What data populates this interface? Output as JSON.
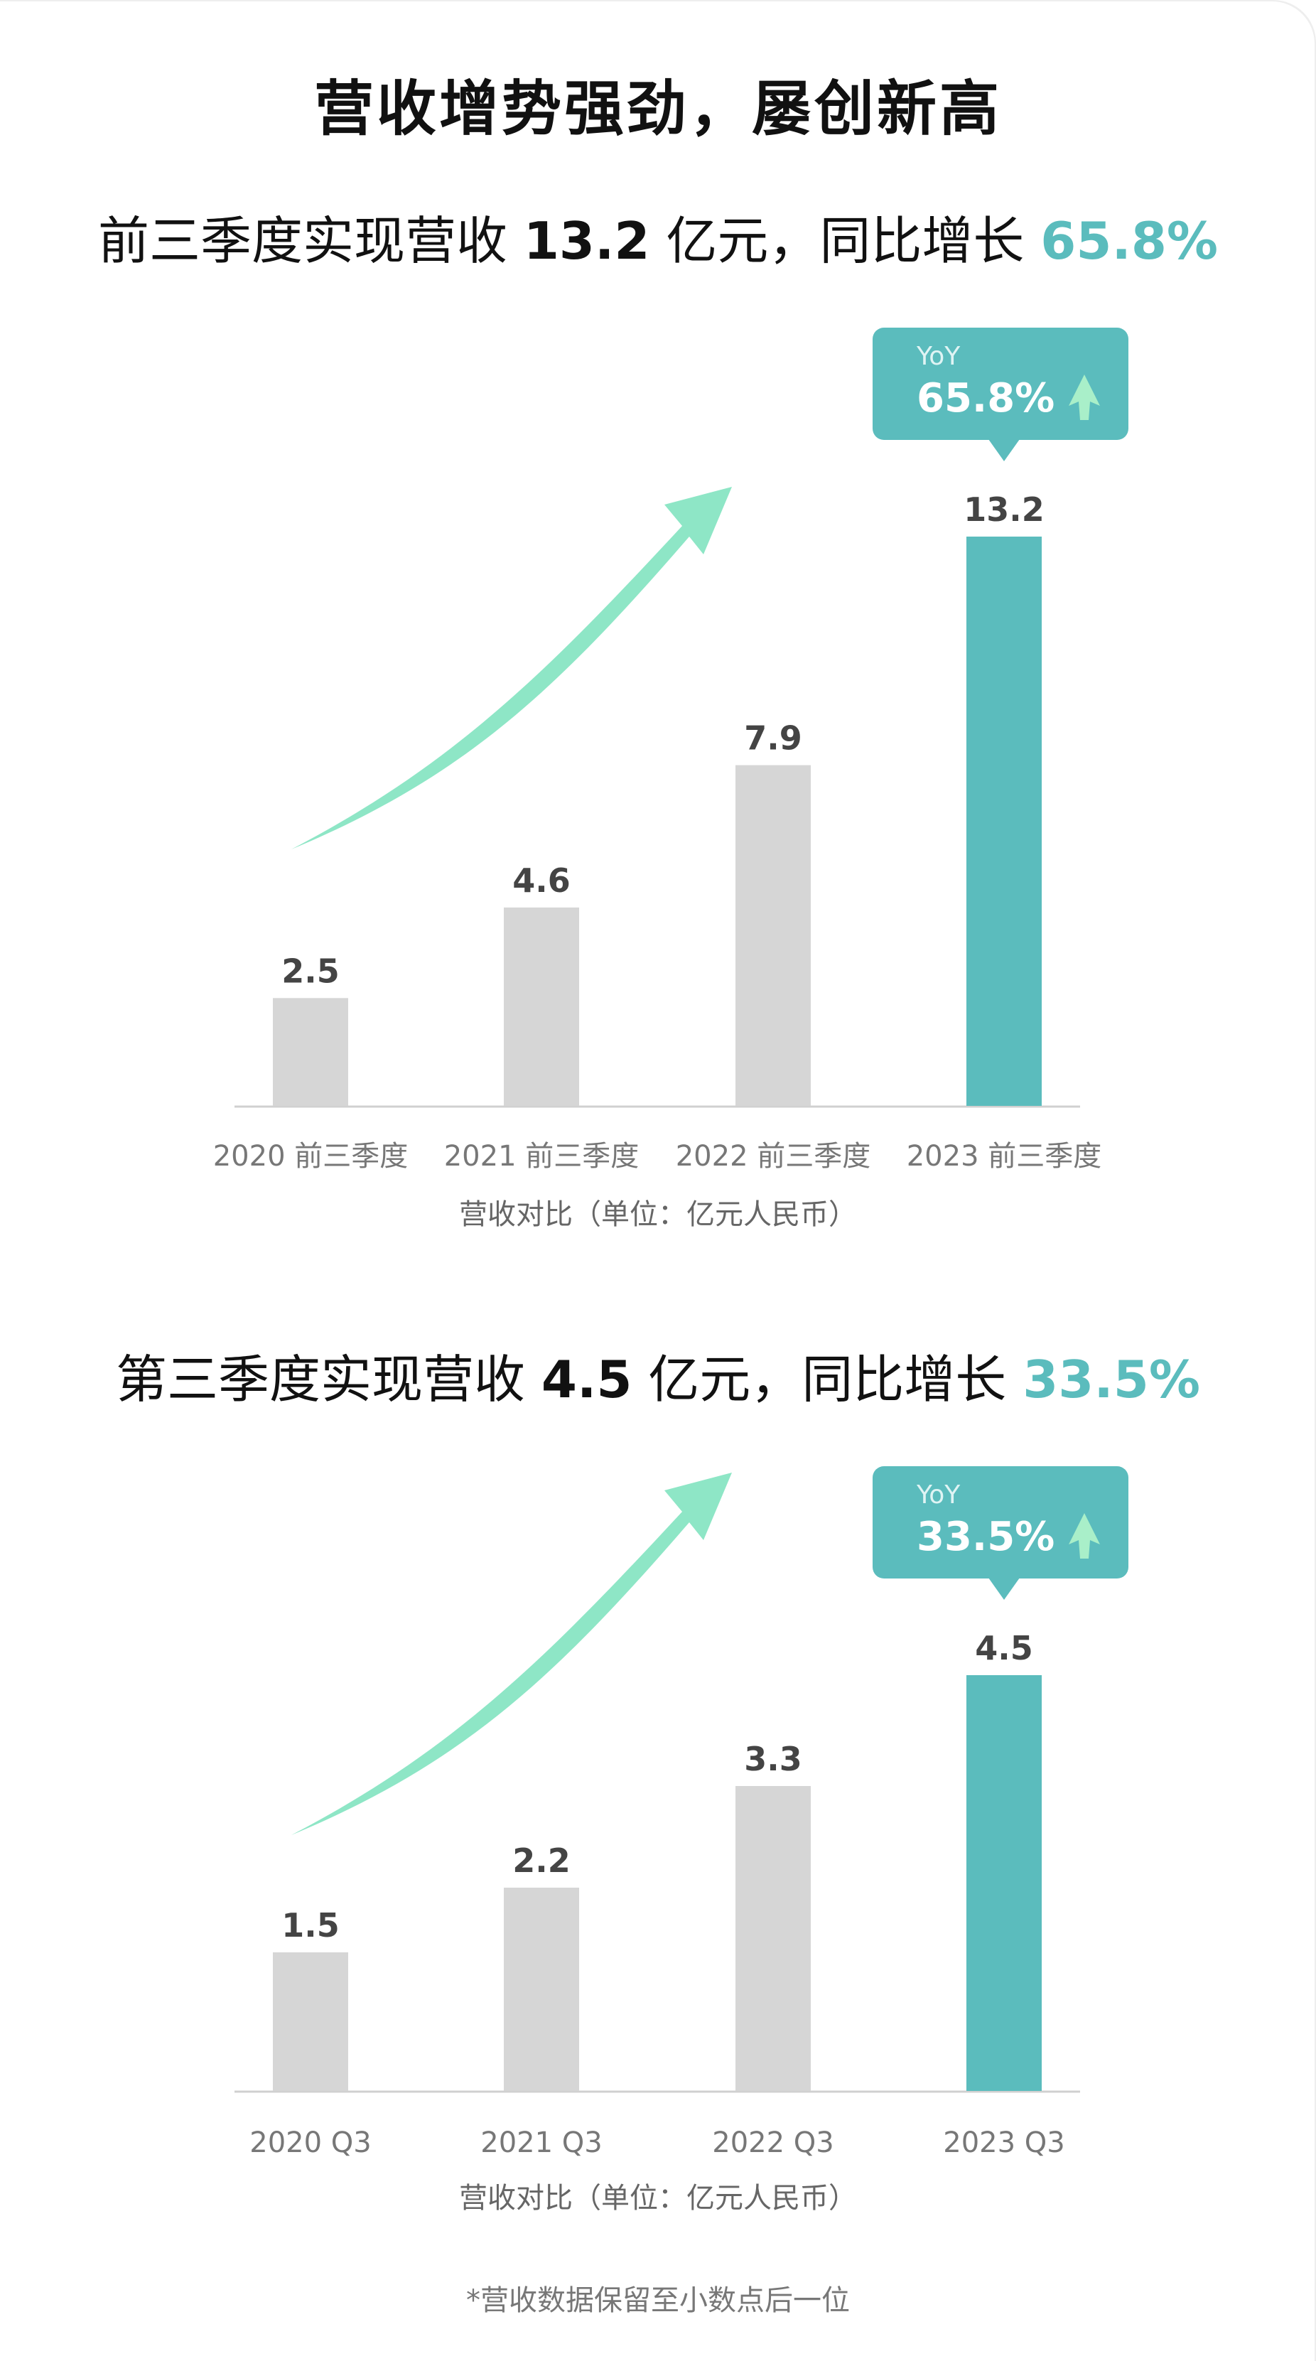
{
  "page_title": "营收增势强劲，屡创新高",
  "footnote": "*营收数据保留至小数点后一位",
  "colors": {
    "bar_default": "#d6d6d6",
    "bar_highlight": "#5bbcbd",
    "accent": "#5bbcbd",
    "arrow": "#8ee6c6",
    "yoy_arrow": "#a9efc9"
  },
  "sections": [
    {
      "headline": {
        "prefix": "前三季度实现营收 ",
        "value": "13.2",
        "middle": " 亿元，同比增长 ",
        "pct": "65.8%"
      },
      "yoy_label": "YoY",
      "yoy_value": "65.8%",
      "caption": "营收对比（单位：亿元人民币）"
    },
    {
      "headline": {
        "prefix": "第三季度实现营收 ",
        "value": "4.5",
        "middle": " 亿元，同比增长 ",
        "pct": "33.5%"
      },
      "yoy_label": "YoY",
      "yoy_value": "33.5%",
      "caption": "营收对比（单位：亿元人民币）"
    }
  ],
  "chart_data": [
    {
      "type": "bar",
      "categories": [
        "2020 前三季度",
        "2021 前三季度",
        "2022 前三季度",
        "2023 前三季度"
      ],
      "values": [
        2.5,
        4.6,
        7.9,
        13.2
      ],
      "value_labels": [
        "2.5",
        "4.6",
        "7.9",
        "13.2"
      ],
      "highlight_index": 3,
      "ylim": [
        0,
        13.2
      ],
      "grid": false,
      "xlabel": "营收对比（单位：亿元人民币）"
    },
    {
      "type": "bar",
      "categories": [
        "2020 Q3",
        "2021 Q3",
        "2022 Q3",
        "2023 Q3"
      ],
      "values": [
        1.5,
        2.2,
        3.3,
        4.5
      ],
      "value_labels": [
        "1.5",
        "2.2",
        "3.3",
        "4.5"
      ],
      "highlight_index": 3,
      "ylim": [
        0,
        4.5
      ],
      "grid": false,
      "xlabel": "营收对比（单位：亿元人民币）"
    }
  ]
}
